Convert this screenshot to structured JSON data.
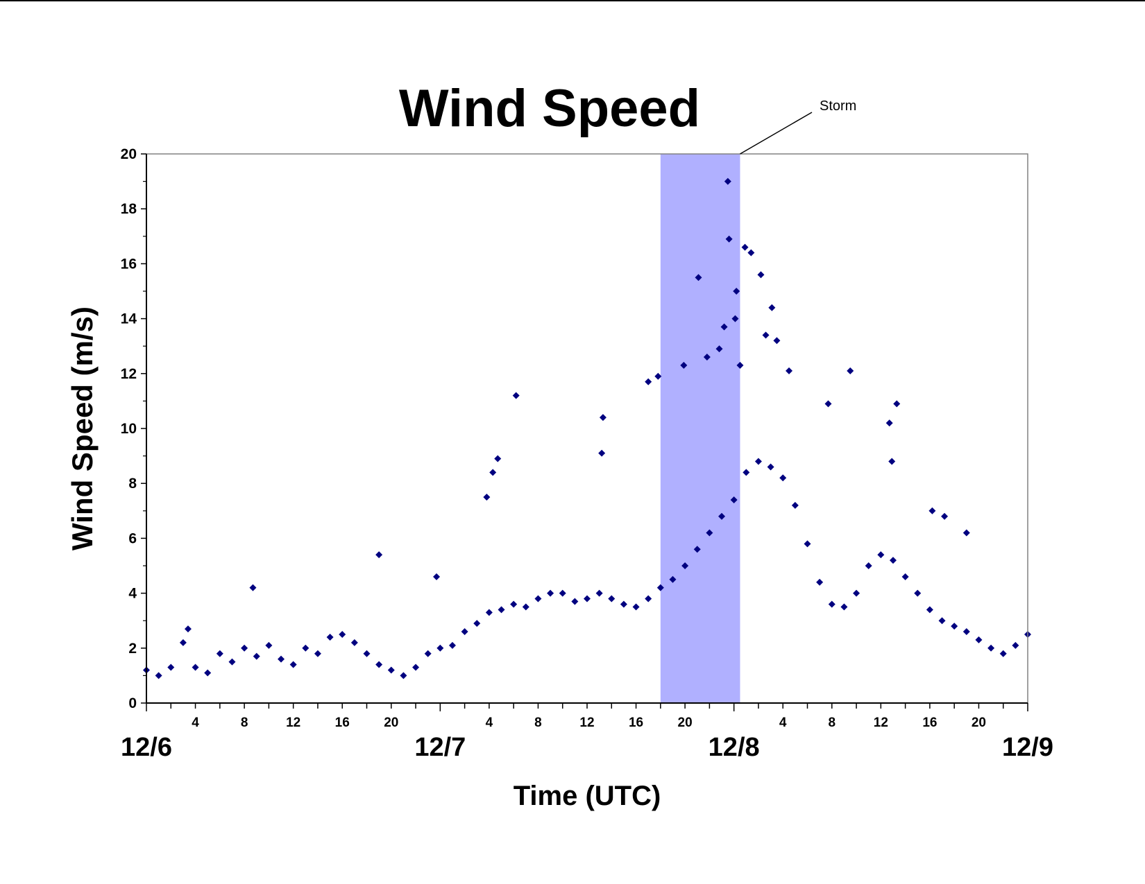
{
  "chart_data": {
    "type": "scatter",
    "title": "Wind Speed",
    "xlabel": "Time (UTC)",
    "ylabel": "Wind Speed (m/s)",
    "x_unit": "hours",
    "xlim": [
      0,
      72
    ],
    "ylim": [
      0,
      20
    ],
    "y_ticks": [
      "0",
      "2",
      "4",
      "6",
      "8",
      "10",
      "12",
      "14",
      "16",
      "18",
      "20"
    ],
    "day_ticks": [
      {
        "label": "12/6",
        "x": 0
      },
      {
        "label": "12/7",
        "x": 24
      },
      {
        "label": "12/8",
        "x": 48
      },
      {
        "label": "12/9",
        "x": 72
      }
    ],
    "hour_ticks": [
      {
        "label": "4",
        "x": 4
      },
      {
        "label": "8",
        "x": 8
      },
      {
        "label": "12",
        "x": 12
      },
      {
        "label": "16",
        "x": 16
      },
      {
        "label": "20",
        "x": 20
      },
      {
        "label": "4",
        "x": 28
      },
      {
        "label": "8",
        "x": 32
      },
      {
        "label": "12",
        "x": 36
      },
      {
        "label": "16",
        "x": 40
      },
      {
        "label": "20",
        "x": 44
      },
      {
        "label": "4",
        "x": 52
      },
      {
        "label": "8",
        "x": 56
      },
      {
        "label": "12",
        "x": 60
      },
      {
        "label": "16",
        "x": 64
      },
      {
        "label": "20",
        "x": 68
      }
    ],
    "marker_color": "#000080",
    "storm_band": {
      "x_start": 42,
      "x_end": 48.5,
      "color": "#b0b0ff"
    },
    "annotation": {
      "text": "Storm"
    },
    "series": [
      {
        "values": [
          [
            0.0,
            1.2
          ],
          [
            1.0,
            1.0
          ],
          [
            2.0,
            1.3
          ],
          [
            3.0,
            2.2
          ],
          [
            4.0,
            1.3
          ],
          [
            5.0,
            1.1
          ],
          [
            6.0,
            1.8
          ],
          [
            7.0,
            1.5
          ],
          [
            8.0,
            2.0
          ],
          [
            9.0,
            1.7
          ],
          [
            10.0,
            2.1
          ],
          [
            11.0,
            1.6
          ],
          [
            12.0,
            1.4
          ],
          [
            13.0,
            2.0
          ],
          [
            14.0,
            1.8
          ],
          [
            15.0,
            2.4
          ],
          [
            16.0,
            2.5
          ],
          [
            17.0,
            2.2
          ],
          [
            18.0,
            1.8
          ],
          [
            19.0,
            1.4
          ],
          [
            20.0,
            1.2
          ],
          [
            21.0,
            1.0
          ],
          [
            22.0,
            1.3
          ],
          [
            23.0,
            1.8
          ],
          [
            24.0,
            2.0
          ],
          [
            25.0,
            2.1
          ],
          [
            26.0,
            2.6
          ],
          [
            27.0,
            2.9
          ],
          [
            28.0,
            3.3
          ],
          [
            29.0,
            3.4
          ],
          [
            30.0,
            3.6
          ],
          [
            31.0,
            3.5
          ],
          [
            32.0,
            3.8
          ],
          [
            33.0,
            4.0
          ],
          [
            34.0,
            4.0
          ],
          [
            35.0,
            3.7
          ],
          [
            36.0,
            3.8
          ],
          [
            37.0,
            4.0
          ],
          [
            38.0,
            3.8
          ],
          [
            39.0,
            3.6
          ],
          [
            40.0,
            3.5
          ],
          [
            41.0,
            3.8
          ],
          [
            42.0,
            4.2
          ],
          [
            43.0,
            4.5
          ],
          [
            44.0,
            5.0
          ],
          [
            45.0,
            5.6
          ],
          [
            46.0,
            6.2
          ],
          [
            47.0,
            6.8
          ],
          [
            48.0,
            7.4
          ],
          [
            49.0,
            8.4
          ],
          [
            50.0,
            8.8
          ],
          [
            51.0,
            8.6
          ],
          [
            52.0,
            8.2
          ],
          [
            53.0,
            7.2
          ],
          [
            54.0,
            5.8
          ],
          [
            55.0,
            4.4
          ],
          [
            56.0,
            3.6
          ],
          [
            57.0,
            3.5
          ],
          [
            58.0,
            4.0
          ],
          [
            59.0,
            5.0
          ],
          [
            60.0,
            5.4
          ],
          [
            61.0,
            5.2
          ],
          [
            62.0,
            4.6
          ],
          [
            63.0,
            4.0
          ],
          [
            64.0,
            3.4
          ],
          [
            65.0,
            3.0
          ],
          [
            66.0,
            2.8
          ],
          [
            67.0,
            2.6
          ],
          [
            68.0,
            2.3
          ],
          [
            69.0,
            2.0
          ],
          [
            70.0,
            1.8
          ],
          [
            71.0,
            2.1
          ],
          [
            72.0,
            2.5
          ],
          [
            47.5,
            19.0
          ],
          [
            47.6,
            16.9
          ],
          [
            48.9,
            16.6
          ],
          [
            49.4,
            16.4
          ],
          [
            50.2,
            15.6
          ],
          [
            45.1,
            15.5
          ],
          [
            48.2,
            15.0
          ],
          [
            51.1,
            14.4
          ],
          [
            48.1,
            14.0
          ],
          [
            47.2,
            13.7
          ],
          [
            50.6,
            13.4
          ],
          [
            51.5,
            13.2
          ],
          [
            46.8,
            12.9
          ],
          [
            45.8,
            12.6
          ],
          [
            43.9,
            12.3
          ],
          [
            48.5,
            12.3
          ],
          [
            30.2,
            11.2
          ],
          [
            41.0,
            11.7
          ],
          [
            41.8,
            11.9
          ],
          [
            52.5,
            12.1
          ],
          [
            57.5,
            12.1
          ],
          [
            37.3,
            10.4
          ],
          [
            55.7,
            10.9
          ],
          [
            61.3,
            10.9
          ],
          [
            60.7,
            10.2
          ],
          [
            37.2,
            9.1
          ],
          [
            28.7,
            8.9
          ],
          [
            28.3,
            8.4
          ],
          [
            60.9,
            8.8
          ],
          [
            27.8,
            7.5
          ],
          [
            19.0,
            5.4
          ],
          [
            23.7,
            4.6
          ],
          [
            8.7,
            4.2
          ],
          [
            3.4,
            2.7
          ],
          [
            64.2,
            7.0
          ],
          [
            65.2,
            6.8
          ],
          [
            67.0,
            6.2
          ]
        ]
      }
    ]
  }
}
